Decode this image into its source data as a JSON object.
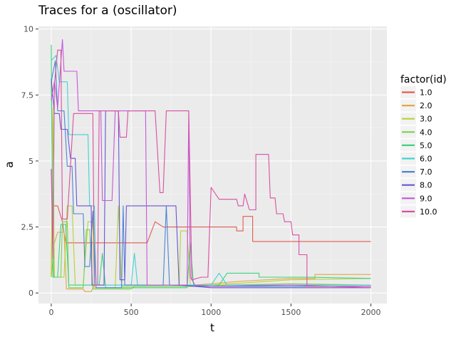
{
  "chart_data": {
    "type": "line",
    "title": "Traces for a (oscillator)",
    "xlabel": "t",
    "ylabel": "a",
    "xlim": [
      -80,
      2100
    ],
    "ylim": [
      -0.4,
      10.1
    ],
    "x_ticks": [
      0,
      500,
      1000,
      1500,
      2000
    ],
    "x_tick_labels": [
      "0",
      "500",
      "1000",
      "1500",
      "2000"
    ],
    "y_ticks": [
      0,
      2.5,
      5,
      7.5,
      10
    ],
    "y_tick_labels": [
      "0",
      "2.5",
      "5",
      "7.5",
      "10"
    ],
    "grid": true,
    "legend": {
      "title": "factor(id)",
      "position": "right"
    },
    "series": [
      {
        "name": "1.0",
        "color": "#e15b4f",
        "points": [
          [
            0,
            0.6
          ],
          [
            5,
            3.3
          ],
          [
            40,
            3.3
          ],
          [
            70,
            2.7
          ],
          [
            90,
            1.9
          ],
          [
            300,
            1.9
          ],
          [
            600,
            1.9
          ],
          [
            650,
            2.7
          ],
          [
            700,
            2.5
          ],
          [
            1000,
            2.5
          ],
          [
            1160,
            2.5
          ],
          [
            1160,
            2.35
          ],
          [
            1200,
            2.35
          ],
          [
            1200,
            2.9
          ],
          [
            1260,
            2.9
          ],
          [
            1260,
            1.95
          ],
          [
            1500,
            1.95
          ],
          [
            2000,
            1.95
          ]
        ]
      },
      {
        "name": "2.0",
        "color": "#e2a744",
        "points": [
          [
            0,
            0.6
          ],
          [
            20,
            1.9
          ],
          [
            40,
            2.3
          ],
          [
            80,
            2.3
          ],
          [
            95,
            0.15
          ],
          [
            200,
            0.15
          ],
          [
            210,
            0.05
          ],
          [
            250,
            0.05
          ],
          [
            270,
            0.3
          ],
          [
            900,
            0.3
          ],
          [
            1200,
            0.45
          ],
          [
            1500,
            0.55
          ],
          [
            1650,
            0.55
          ],
          [
            1650,
            0.7
          ],
          [
            2000,
            0.7
          ]
        ]
      },
      {
        "name": "3.0",
        "color": "#b6d13a",
        "points": [
          [
            0,
            0.6
          ],
          [
            10,
            7.0
          ],
          [
            20,
            0.6
          ],
          [
            80,
            0.6
          ],
          [
            100,
            3.3
          ],
          [
            130,
            3.3
          ],
          [
            150,
            0.3
          ],
          [
            200,
            0.3
          ],
          [
            230,
            2.7
          ],
          [
            260,
            2.7
          ],
          [
            270,
            0.2
          ],
          [
            400,
            0.2
          ],
          [
            420,
            3.3
          ],
          [
            440,
            0.25
          ],
          [
            800,
            0.25
          ],
          [
            810,
            2.35
          ],
          [
            850,
            2.35
          ],
          [
            870,
            0.25
          ],
          [
            1000,
            0.3
          ],
          [
            1500,
            0.5
          ],
          [
            2000,
            0.55
          ]
        ]
      },
      {
        "name": "4.0",
        "color": "#7bd24b",
        "points": [
          [
            0,
            8.0
          ],
          [
            15,
            0.6
          ],
          [
            60,
            0.6
          ],
          [
            70,
            2.7
          ],
          [
            100,
            2.7
          ],
          [
            110,
            0.2
          ],
          [
            200,
            0.2
          ],
          [
            220,
            2.4
          ],
          [
            240,
            2.4
          ],
          [
            260,
            0.15
          ],
          [
            500,
            0.15
          ],
          [
            520,
            0.25
          ],
          [
            1000,
            0.25
          ],
          [
            1100,
            0.3
          ],
          [
            1500,
            0.35
          ],
          [
            2000,
            0.3
          ]
        ]
      },
      {
        "name": "5.0",
        "color": "#3dd37f",
        "points": [
          [
            0,
            9.4
          ],
          [
            10,
            0.6
          ],
          [
            40,
            0.6
          ],
          [
            60,
            2.6
          ],
          [
            90,
            2.6
          ],
          [
            110,
            0.3
          ],
          [
            300,
            0.3
          ],
          [
            320,
            1.5
          ],
          [
            340,
            0.2
          ],
          [
            850,
            0.2
          ],
          [
            870,
            1.9
          ],
          [
            890,
            0.3
          ],
          [
            1050,
            0.3
          ],
          [
            1100,
            0.75
          ],
          [
            1300,
            0.75
          ],
          [
            1300,
            0.6
          ],
          [
            1600,
            0.6
          ],
          [
            2000,
            0.55
          ]
        ]
      },
      {
        "name": "6.0",
        "color": "#42d2d2",
        "points": [
          [
            0,
            8.8
          ],
          [
            30,
            9.0
          ],
          [
            50,
            8.0
          ],
          [
            100,
            8.0
          ],
          [
            110,
            6.0
          ],
          [
            200,
            6.0
          ],
          [
            230,
            6.0
          ],
          [
            240,
            3.3
          ],
          [
            270,
            3.3
          ],
          [
            280,
            0.3
          ],
          [
            500,
            0.3
          ],
          [
            520,
            1.5
          ],
          [
            540,
            0.3
          ],
          [
            1000,
            0.3
          ],
          [
            1050,
            0.75
          ],
          [
            1100,
            0.3
          ],
          [
            2000,
            0.3
          ]
        ]
      },
      {
        "name": "7.0",
        "color": "#4a84d5",
        "points": [
          [
            0,
            8.0
          ],
          [
            25,
            8.8
          ],
          [
            40,
            6.9
          ],
          [
            80,
            6.9
          ],
          [
            100,
            4.8
          ],
          [
            130,
            4.8
          ],
          [
            140,
            3.0
          ],
          [
            200,
            3.0
          ],
          [
            210,
            1.0
          ],
          [
            240,
            1.0
          ],
          [
            260,
            3.1
          ],
          [
            280,
            0.2
          ],
          [
            440,
            0.2
          ],
          [
            450,
            3.3
          ],
          [
            460,
            0.3
          ],
          [
            700,
            0.3
          ],
          [
            720,
            3.3
          ],
          [
            740,
            0.3
          ],
          [
            1000,
            0.25
          ],
          [
            1500,
            0.25
          ],
          [
            2000,
            0.25
          ]
        ]
      },
      {
        "name": "8.0",
        "color": "#6655d4",
        "points": [
          [
            0,
            8.1
          ],
          [
            20,
            6.8
          ],
          [
            50,
            6.8
          ],
          [
            60,
            6.2
          ],
          [
            100,
            6.2
          ],
          [
            120,
            5.1
          ],
          [
            150,
            5.1
          ],
          [
            160,
            3.3
          ],
          [
            250,
            3.3
          ],
          [
            255,
            0.3
          ],
          [
            330,
            0.3
          ],
          [
            340,
            6.9
          ],
          [
            420,
            6.9
          ],
          [
            430,
            0.5
          ],
          [
            460,
            0.5
          ],
          [
            470,
            3.3
          ],
          [
            600,
            3.3
          ],
          [
            620,
            3.3
          ],
          [
            780,
            3.3
          ],
          [
            800,
            0.3
          ],
          [
            1000,
            0.2
          ],
          [
            1500,
            0.2
          ],
          [
            2000,
            0.2
          ]
        ]
      },
      {
        "name": "9.0",
        "color": "#c458d8",
        "points": [
          [
            0,
            7.3
          ],
          [
            20,
            8.0
          ],
          [
            40,
            7.0
          ],
          [
            70,
            9.6
          ],
          [
            80,
            8.4
          ],
          [
            160,
            8.4
          ],
          [
            170,
            6.9
          ],
          [
            310,
            6.9
          ],
          [
            320,
            3.5
          ],
          [
            380,
            3.5
          ],
          [
            400,
            6.9
          ],
          [
            590,
            6.9
          ],
          [
            600,
            0.3
          ],
          [
            850,
            0.3
          ],
          [
            860,
            6.9
          ],
          [
            870,
            0.6
          ],
          [
            900,
            0.3
          ],
          [
            1000,
            0.25
          ],
          [
            1500,
            0.3
          ],
          [
            2000,
            0.2
          ]
        ]
      },
      {
        "name": "10.0",
        "color": "#d94fa1",
        "points": [
          [
            0,
            4.7
          ],
          [
            10,
            1.3
          ],
          [
            20,
            7.9
          ],
          [
            40,
            9.2
          ],
          [
            60,
            9.2
          ],
          [
            70,
            2.8
          ],
          [
            100,
            2.8
          ],
          [
            140,
            6.8
          ],
          [
            220,
            6.8
          ],
          [
            260,
            6.8
          ],
          [
            270,
            0.3
          ],
          [
            290,
            0.3
          ],
          [
            300,
            6.9
          ],
          [
            420,
            6.9
          ],
          [
            430,
            5.9
          ],
          [
            470,
            5.9
          ],
          [
            480,
            6.9
          ],
          [
            650,
            6.9
          ],
          [
            680,
            3.8
          ],
          [
            700,
            3.8
          ],
          [
            720,
            6.9
          ],
          [
            860,
            6.9
          ],
          [
            880,
            0.5
          ],
          [
            940,
            0.6
          ],
          [
            980,
            0.6
          ],
          [
            1000,
            4.0
          ],
          [
            1050,
            3.55
          ],
          [
            1160,
            3.55
          ],
          [
            1170,
            3.3
          ],
          [
            1200,
            3.3
          ],
          [
            1210,
            3.75
          ],
          [
            1240,
            3.15
          ],
          [
            1280,
            3.15
          ],
          [
            1280,
            5.25
          ],
          [
            1360,
            5.25
          ],
          [
            1370,
            3.6
          ],
          [
            1400,
            3.6
          ],
          [
            1410,
            3.0
          ],
          [
            1450,
            3.0
          ],
          [
            1460,
            2.7
          ],
          [
            1500,
            2.7
          ],
          [
            1510,
            2.2
          ],
          [
            1550,
            2.2
          ],
          [
            1550,
            1.45
          ],
          [
            1600,
            1.45
          ],
          [
            1600,
            0.25
          ],
          [
            2000,
            0.25
          ]
        ]
      }
    ]
  }
}
